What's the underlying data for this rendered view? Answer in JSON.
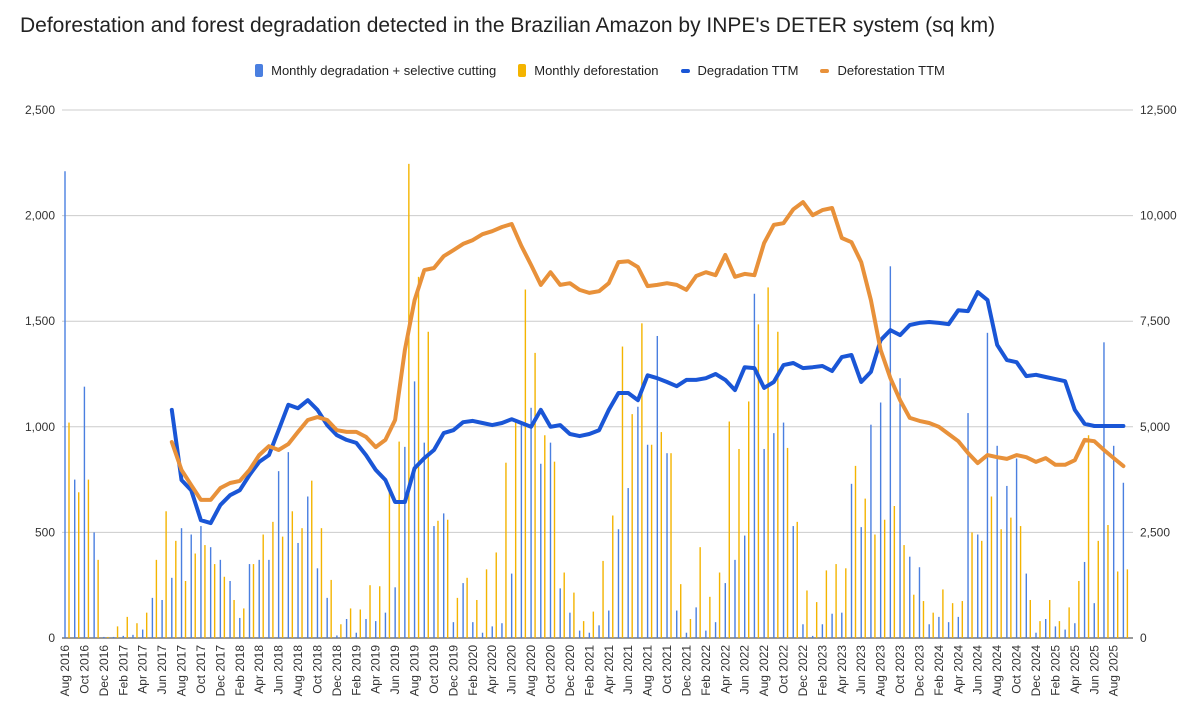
{
  "chart_data": {
    "type": "bar+line",
    "title": "Deforestation and forest degradation detected in the Brazilian Amazon by INPE's DETER system (sq km)",
    "legend_position": "top",
    "grid": true,
    "y_left": {
      "range": [
        0,
        2500
      ],
      "ticks": [
        "0",
        "500",
        "1,000",
        "1,500",
        "2,000",
        "2,500"
      ]
    },
    "y_right": {
      "range": [
        0,
        12500
      ],
      "ticks": [
        "0",
        "2,500",
        "5,000",
        "7,500",
        "10,000",
        "12,500"
      ]
    },
    "x_tick_labels": [
      "Aug 2016",
      "Oct 2016",
      "Dec 2016",
      "Feb 2017",
      "Apr 2017",
      "Jun 2017",
      "Aug 2017",
      "Oct 2017",
      "Dec 2017",
      "Feb 2018",
      "Apr 2018",
      "Jun 2018",
      "Aug 2018",
      "Oct 2018",
      "Dec 2018",
      "Feb 2019",
      "Apr 2019",
      "Jun 2019",
      "Aug 2019",
      "Oct 2019",
      "Dec 2019",
      "Feb 2020",
      "Apr 2020",
      "Jun 2020",
      "Aug 2020",
      "Oct 2020",
      "Dec 2020",
      "Feb 2021",
      "Apr 2021",
      "Jun 2021",
      "Aug 2021",
      "Oct 2021",
      "Dec 2021",
      "Feb 2022",
      "Apr 2022",
      "Jun 2022",
      "Aug 2022",
      "Oct 2022",
      "Dec 2022",
      "Feb 2023",
      "Apr 2023",
      "Jun 2023",
      "Aug 2023",
      "Oct 2023",
      "Dec 2023",
      "Feb 2024",
      "Apr 2024",
      "Jun 2024",
      "Aug 2024",
      "Oct 2024",
      "Dec 2024",
      "Feb 2025",
      "Apr 2025",
      "Jun 2025",
      "Aug 2025"
    ],
    "x_start": "Aug 2016",
    "x_end": "Sep 2025",
    "series": [
      {
        "name": "Monthly degradation + selective cutting",
        "kind": "bar",
        "axis": "left",
        "color": "#4a7fe0",
        "values": [
          2210,
          750,
          1190,
          500,
          5,
          5,
          10,
          15,
          40,
          190,
          180,
          285,
          520,
          490,
          530,
          430,
          370,
          270,
          95,
          350,
          370,
          370,
          790,
          880,
          450,
          670,
          330,
          190,
          12,
          90,
          25,
          90,
          80,
          120,
          240,
          905,
          1215,
          925,
          530,
          590,
          75,
          260,
          75,
          25,
          55,
          70,
          305,
          1015,
          1090,
          825,
          925,
          235,
          120,
          35,
          25,
          60,
          130,
          515,
          710,
          1095,
          915,
          1430,
          875,
          130,
          25,
          145,
          35,
          75,
          260,
          370,
          485,
          1630,
          895,
          970,
          1020,
          530,
          65,
          10,
          65,
          115,
          120,
          730,
          525,
          1010,
          1115,
          1760,
          1230,
          385,
          335,
          65,
          100,
          75,
          100,
          1065,
          490,
          1445,
          910,
          720,
          850,
          305,
          25,
          90,
          55,
          40,
          70,
          360,
          165,
          1400,
          910,
          735
        ]
      },
      {
        "name": "Monthly deforestation",
        "kind": "bar",
        "axis": "left",
        "color": "#f4b400",
        "values": [
          1020,
          690,
          750,
          370,
          5,
          55,
          100,
          70,
          120,
          370,
          600,
          460,
          270,
          400,
          440,
          350,
          290,
          180,
          140,
          350,
          490,
          550,
          480,
          600,
          520,
          745,
          520,
          275,
          65,
          140,
          135,
          250,
          245,
          700,
          930,
          2245,
          1710,
          1450,
          555,
          560,
          190,
          285,
          180,
          325,
          405,
          830,
          1035,
          1650,
          1350,
          960,
          835,
          310,
          215,
          80,
          125,
          365,
          580,
          1380,
          1060,
          1490,
          915,
          975,
          875,
          255,
          90,
          430,
          195,
          310,
          1025,
          895,
          1120,
          1485,
          1660,
          1450,
          900,
          550,
          225,
          170,
          320,
          350,
          330,
          815,
          660,
          490,
          560,
          625,
          440,
          205,
          175,
          120,
          230,
          165,
          175,
          500,
          460,
          670,
          515,
          570,
          530,
          180,
          80,
          180,
          80,
          145,
          270,
          960,
          460,
          535,
          315,
          325
        ]
      },
      {
        "name": "Degradation TTM",
        "kind": "line",
        "axis": "right",
        "color": "#1a56d6",
        "start": "Jul 2017",
        "values": [
          5400,
          3740,
          3500,
          2790,
          2720,
          3150,
          3380,
          3500,
          3860,
          4170,
          4330,
          4920,
          5520,
          5440,
          5630,
          5400,
          5040,
          4800,
          4690,
          4620,
          4330,
          3980,
          3740,
          3220,
          3220,
          4020,
          4260,
          4450,
          4850,
          4920,
          5110,
          5140,
          5090,
          5040,
          5090,
          5180,
          5090,
          5000,
          5400,
          5000,
          5040,
          4830,
          4780,
          4830,
          4920,
          5400,
          5800,
          5800,
          5630,
          6220,
          6150,
          6060,
          5960,
          6110,
          6110,
          6150,
          6250,
          6110,
          5870,
          6410,
          6390,
          5920,
          6060,
          6460,
          6510,
          6390,
          6410,
          6440,
          6320,
          6650,
          6700,
          6060,
          6300,
          7050,
          7290,
          7170,
          7410,
          7460,
          7480,
          7460,
          7430,
          7760,
          7740,
          8190,
          8000,
          6940,
          6580,
          6530,
          6200,
          6230,
          6180,
          6130,
          6080,
          5400,
          5070,
          5020,
          5020,
          5020,
          5020
        ]
      },
      {
        "name": "Deforestation TTM",
        "kind": "line",
        "axis": "right",
        "color": "#e8913a",
        "start": "Jul 2017",
        "values": [
          4640,
          3980,
          3620,
          3270,
          3270,
          3550,
          3670,
          3720,
          3980,
          4330,
          4540,
          4450,
          4590,
          4880,
          5160,
          5230,
          5160,
          4920,
          4880,
          4880,
          4760,
          4520,
          4690,
          5160,
          6820,
          8000,
          8710,
          8760,
          9040,
          9180,
          9330,
          9420,
          9560,
          9630,
          9730,
          9800,
          9280,
          8830,
          8360,
          8660,
          8360,
          8400,
          8240,
          8170,
          8210,
          8400,
          8900,
          8920,
          8780,
          8330,
          8360,
          8400,
          8360,
          8240,
          8570,
          8660,
          8590,
          9070,
          8550,
          8620,
          8590,
          9350,
          9780,
          9820,
          10150,
          10320,
          10010,
          10130,
          10180,
          9470,
          9370,
          8900,
          8000,
          6820,
          6150,
          5630,
          5210,
          5140,
          5090,
          5000,
          4830,
          4660,
          4380,
          4140,
          4330,
          4280,
          4240,
          4330,
          4280,
          4170,
          4260,
          4100,
          4100,
          4210,
          4690,
          4660,
          4450,
          4260,
          4070
        ]
      }
    ]
  }
}
